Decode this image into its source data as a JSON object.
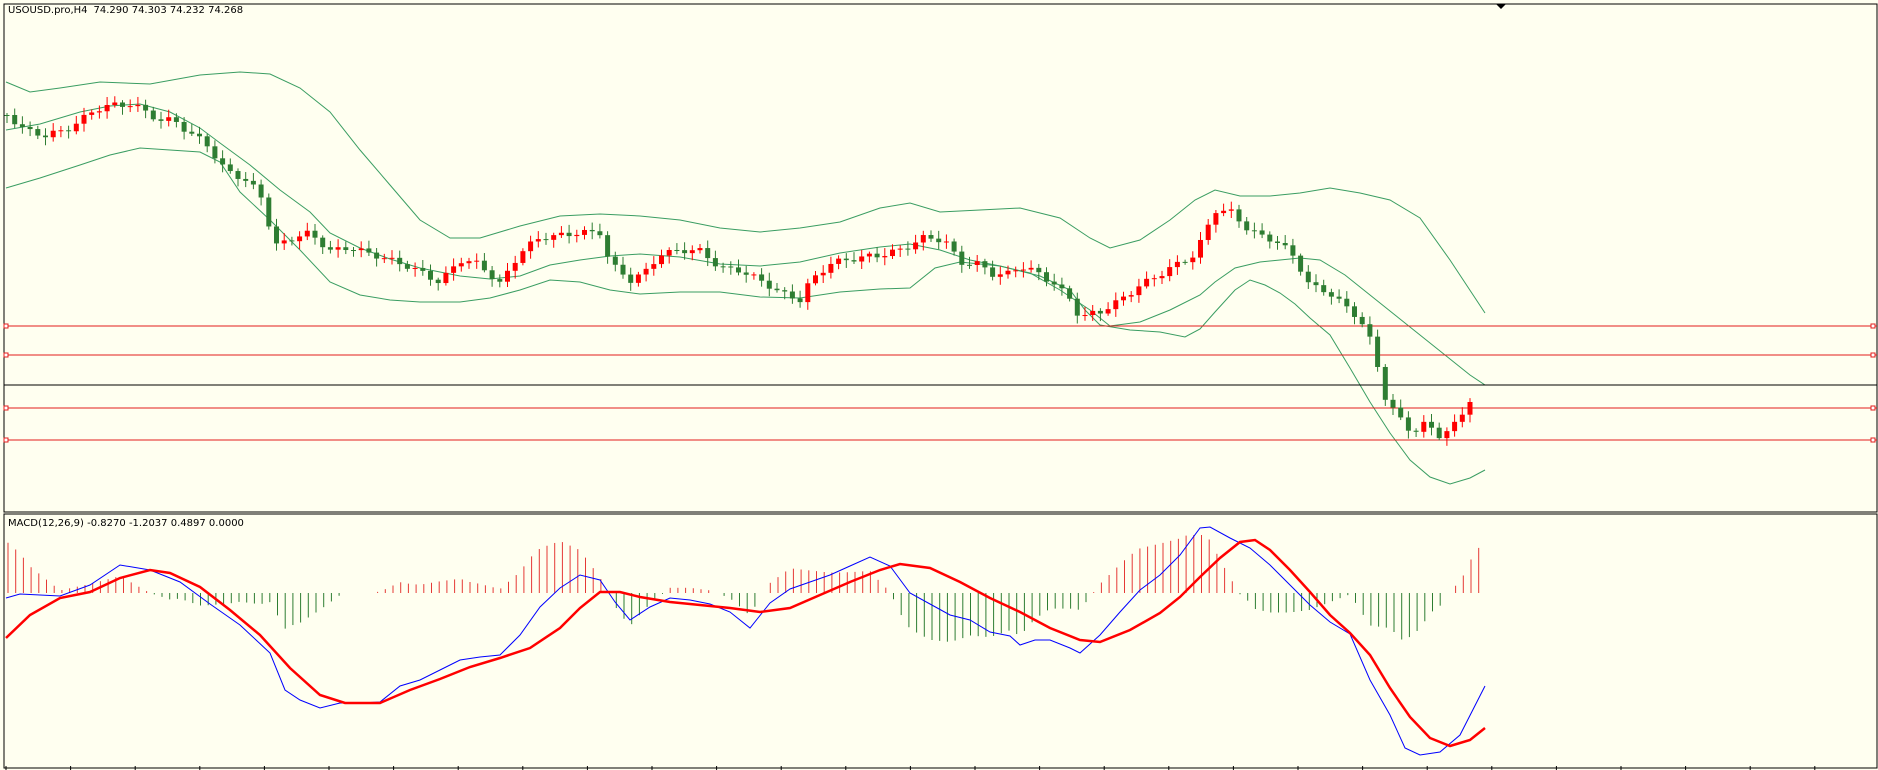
{
  "window": {
    "symbol_label": "USOUSD.pro,H4",
    "ohlc": [
      "74.290",
      "74.303",
      "74.232",
      "74.268"
    ]
  },
  "macd_panel": {
    "label": "MACD(12,26,9)",
    "values": [
      "-0.8270",
      "-1.2037",
      "0.4897",
      "0.0000"
    ]
  },
  "colors": {
    "background": "#fffff0",
    "bull_candle": "#ff0000",
    "bear_candle": "#2e7d32",
    "bollinger": "#3a9d62",
    "hline": "#e31c1c",
    "current_price_line": "#000000",
    "macd_main": "#0000ff",
    "macd_signal": "#ff0000",
    "hist_positive": "#e53935",
    "hist_negative": "#2e7d32"
  },
  "chart_data": [
    {
      "type": "candlestick",
      "indicators": [
        "Bollinger Bands"
      ],
      "price_levels_shown": 5,
      "current_close": 74.268,
      "candles_up_down_pattern": "mixed",
      "trend_summary": "sideways then sharp decline then rebound"
    },
    {
      "type": "line+histogram",
      "series": [
        "MACD main",
        "Signal"
      ],
      "values": {
        "main": -0.827,
        "signal": -1.2037,
        "histogram": 0.4897
      }
    }
  ]
}
